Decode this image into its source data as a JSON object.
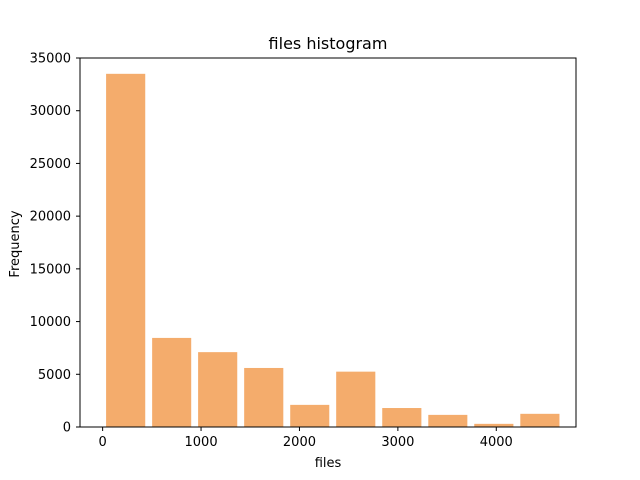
{
  "chart_data": {
    "type": "bar",
    "title": "files histogram",
    "xlabel": "files",
    "ylabel": "Frequency",
    "bar_color": "#f4ac6c",
    "xlim": [
      -230,
      4810
    ],
    "ylim": [
      0,
      35000
    ],
    "xticks": [
      0,
      1000,
      2000,
      3000,
      4000
    ],
    "yticks": [
      0,
      5000,
      10000,
      15000,
      20000,
      25000,
      30000,
      35000
    ],
    "bins": [
      {
        "start": 0,
        "end": 468,
        "value": 33500
      },
      {
        "start": 468,
        "end": 935,
        "value": 8450
      },
      {
        "start": 935,
        "end": 1403,
        "value": 7100
      },
      {
        "start": 1403,
        "end": 1871,
        "value": 5600
      },
      {
        "start": 1871,
        "end": 2338,
        "value": 2100
      },
      {
        "start": 2338,
        "end": 2806,
        "value": 5250
      },
      {
        "start": 2806,
        "end": 3274,
        "value": 1800
      },
      {
        "start": 3274,
        "end": 3741,
        "value": 1150
      },
      {
        "start": 3741,
        "end": 4209,
        "value": 300
      },
      {
        "start": 4209,
        "end": 4677,
        "value": 1250
      }
    ],
    "bar_width_fraction": 0.85
  }
}
